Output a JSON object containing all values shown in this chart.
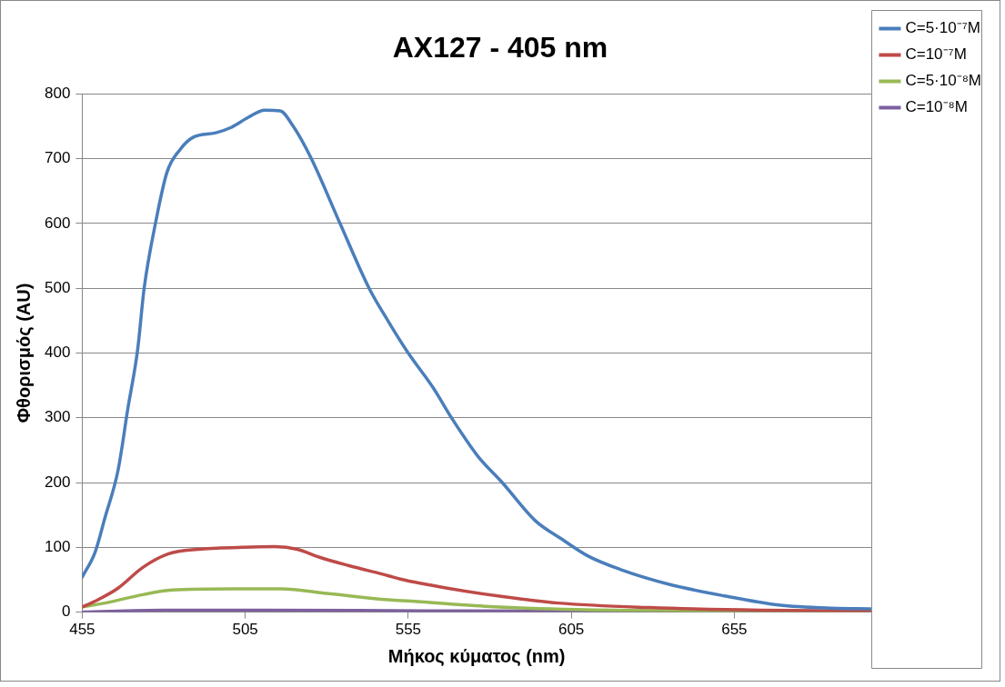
{
  "chart_data": {
    "type": "line",
    "title": "AX127 - 405 nm",
    "xlabel": "Μήκος κύματος (nm)",
    "ylabel": "Φθορισμός (AU)",
    "xlim": [
      455,
      697
    ],
    "xticks": [
      455,
      505,
      555,
      605,
      655
    ],
    "ylim": [
      0,
      800
    ],
    "yticks": [
      0,
      100,
      200,
      300,
      400,
      500,
      600,
      700,
      800
    ],
    "grid": "y",
    "legend": "right",
    "marker": "none",
    "line_style": "solid",
    "series": [
      {
        "name": "C=5·10⁻⁷M",
        "color": "#4a7ebb",
        "x": [
          455,
          459,
          462,
          466,
          469,
          472,
          474,
          477.5,
          481,
          485,
          489,
          496,
          500.5,
          506,
          511,
          515.7,
          519.6,
          525,
          534,
          543,
          549,
          555,
          562.7,
          568.4,
          576.3,
          584,
          594,
          602,
          610,
          620,
          635,
          652,
          668.6,
          685,
          697
        ],
        "values": [
          54,
          93,
          146,
          219,
          314,
          405,
          500,
          601,
          679,
          714,
          733,
          740,
          748,
          764,
          775,
          774,
          751,
          703,
          601,
          500,
          448,
          400,
          346,
          299,
          241,
          199,
          141,
          113,
          87,
          66,
          43,
          25,
          11,
          6,
          5
        ]
      },
      {
        "name": "C=10⁻⁷M",
        "color": "#be4b48",
        "x": [
          455,
          459,
          466,
          473.6,
          481.5,
          490.5,
          504,
          514,
          521,
          527.6,
          536.6,
          549,
          552.6,
          567,
          584,
          601,
          629,
          663,
          697
        ],
        "values": [
          8,
          17,
          37,
          69,
          90,
          97,
          100,
          101,
          97,
          85,
          72,
          56,
          51,
          37,
          24,
          14,
          7,
          3,
          2
        ]
      },
      {
        "name": "C=5·10⁻⁸M",
        "color": "#98b954",
        "x": [
          455,
          462,
          473.6,
          482.6,
          501.7,
          516,
          530,
          549,
          556,
          578.6,
          606.7,
          640,
          697
        ],
        "values": [
          8,
          14,
          27,
          34,
          36,
          36,
          29,
          19,
          17,
          9,
          4,
          2,
          1
        ]
      },
      {
        "name": "C=10⁻⁸M",
        "color": "#7d60a0",
        "x": [
          455,
          480,
          510,
          560,
          697
        ],
        "values": [
          0,
          3,
          3,
          2,
          1
        ]
      }
    ]
  }
}
